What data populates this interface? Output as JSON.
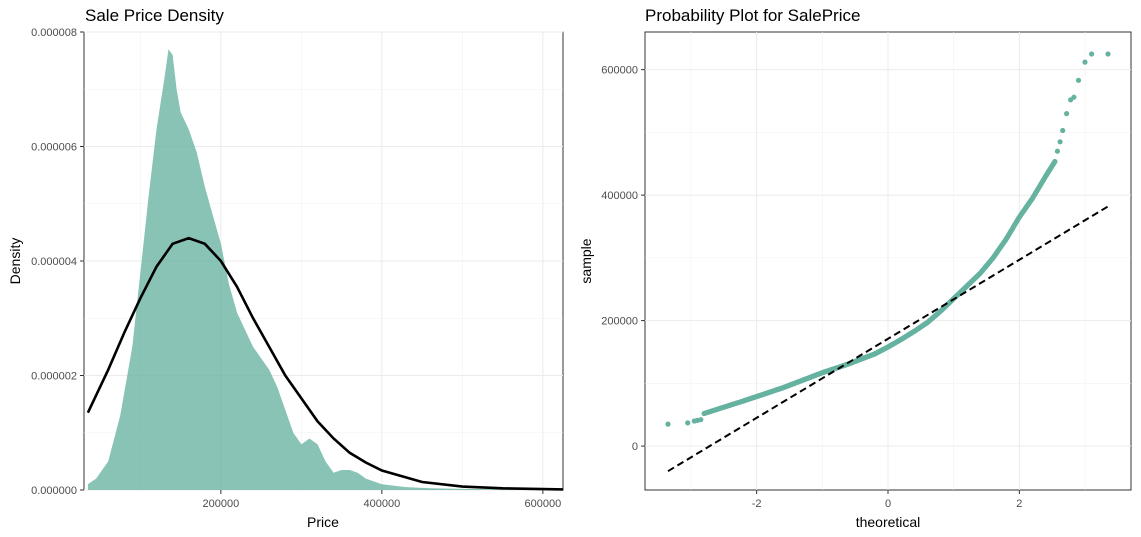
{
  "chart_data": [
    {
      "type": "area",
      "title": "Sale Price Density",
      "xlabel": "Price",
      "ylabel": "Density",
      "xlim": [
        30000,
        625000
      ],
      "ylim": [
        0,
        8e-06
      ],
      "xticks": [
        200000,
        400000,
        600000
      ],
      "xtick_labels": [
        "200000",
        "400000",
        "600000"
      ],
      "yticks": [
        0,
        2e-06,
        4e-06,
        6e-06,
        8e-06
      ],
      "ytick_labels": [
        "0.000000",
        "0.000002",
        "0.000004",
        "0.000006",
        "0.000008"
      ],
      "grid": true,
      "series": [
        {
          "kind": "density-area",
          "color": "#66b2a0",
          "x": [
            34900,
            45000,
            60000,
            75000,
            90000,
            100000,
            110000,
            120000,
            130000,
            135000,
            140000,
            145000,
            150000,
            160000,
            170000,
            180000,
            190000,
            200000,
            210000,
            220000,
            230000,
            240000,
            250000,
            260000,
            270000,
            280000,
            290000,
            300000,
            310000,
            320000,
            330000,
            340000,
            350000,
            360000,
            370000,
            380000,
            400000,
            430000,
            460000,
            500000,
            550000,
            600000,
            625000
          ],
          "y": [
            1e-07,
            2e-07,
            5e-07,
            1.3e-06,
            2.5e-06,
            3.8e-06,
            5.1e-06,
            6.3e-06,
            7.2e-06,
            7.7e-06,
            7.6e-06,
            7e-06,
            6.6e-06,
            6.3e-06,
            5.9e-06,
            5.3e-06,
            4.8e-06,
            4.3e-06,
            3.6e-06,
            3.1e-06,
            2.8e-06,
            2.5e-06,
            2.3e-06,
            2.1e-06,
            1.8e-06,
            1.4e-06,
            1e-06,
            8e-07,
            9e-07,
            8e-07,
            5e-07,
            3e-07,
            3.5e-07,
            3.5e-07,
            3e-07,
            2e-07,
            1e-07,
            5e-08,
            3e-08,
            2e-08,
            1e-08,
            5e-09,
            0
          ]
        },
        {
          "kind": "fitted-curve",
          "color": "#000000",
          "x": [
            34900,
            60000,
            80000,
            100000,
            120000,
            140000,
            160000,
            180000,
            200000,
            220000,
            240000,
            260000,
            280000,
            300000,
            320000,
            340000,
            360000,
            380000,
            400000,
            450000,
            500000,
            550000,
            600000,
            625000
          ],
          "y": [
            1.35e-06,
            2.1e-06,
            2.75e-06,
            3.35e-06,
            3.9e-06,
            4.3e-06,
            4.4e-06,
            4.3e-06,
            4e-06,
            3.55e-06,
            3e-06,
            2.5e-06,
            2e-06,
            1.6e-06,
            1.2e-06,
            9e-07,
            6.5e-07,
            4.8e-07,
            3.4e-07,
            1.4e-07,
            6e-08,
            3e-08,
            1.5e-08,
            1e-08
          ]
        }
      ]
    },
    {
      "type": "scatter",
      "title": "Probability Plot for SalePrice",
      "xlabel": "theoretical",
      "ylabel": "sample",
      "xlim": [
        -3.7,
        3.7
      ],
      "ylim": [
        -70000,
        660000
      ],
      "xticks": [
        -2,
        0,
        2
      ],
      "xtick_labels": [
        "-2",
        "0",
        "2"
      ],
      "yticks": [
        0,
        200000,
        400000,
        600000
      ],
      "ytick_labels": [
        "0",
        "200000",
        "400000",
        "600000"
      ],
      "grid": true,
      "series": [
        {
          "kind": "qq-points",
          "color": "#66b2a0",
          "curve_x": [
            -2.8,
            -2.5,
            -2.2,
            -2.0,
            -1.8,
            -1.6,
            -1.4,
            -1.2,
            -1.0,
            -0.8,
            -0.6,
            -0.4,
            -0.2,
            0.0,
            0.2,
            0.4,
            0.6,
            0.8,
            1.0,
            1.2,
            1.4,
            1.6,
            1.8,
            2.0,
            2.2,
            2.4,
            2.55
          ],
          "curve_y": [
            52000,
            62000,
            72000,
            79000,
            86000,
            93000,
            101000,
            109000,
            117000,
            124000,
            131000,
            139000,
            147000,
            158000,
            170000,
            183000,
            197000,
            215000,
            235000,
            255000,
            275000,
            300000,
            330000,
            365000,
            395000,
            430000,
            455000
          ],
          "tail_x": [
            -3.35,
            -3.05,
            -2.95,
            -2.9,
            -2.85,
            2.58,
            2.62,
            2.66,
            2.72,
            2.78,
            2.83,
            2.9,
            3.0,
            3.1,
            3.35
          ],
          "tail_y": [
            35000,
            37000,
            40000,
            41000,
            42000,
            470000,
            485000,
            503000,
            530000,
            552000,
            556000,
            583000,
            612000,
            625000,
            625000
          ]
        },
        {
          "kind": "reference-line",
          "color": "#000000",
          "x": [
            -3.35,
            3.35
          ],
          "y": [
            -40000,
            382000
          ]
        }
      ]
    }
  ]
}
